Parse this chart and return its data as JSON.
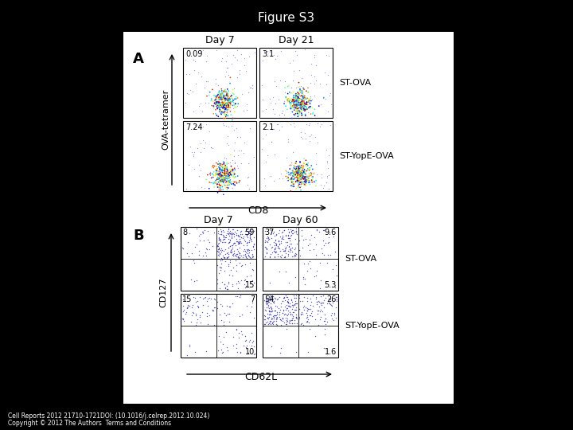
{
  "title": "Figure S3",
  "background_color": "#000000",
  "panel_bg": "#ffffff",
  "panel_A_label": "A",
  "panel_B_label": "B",
  "day7_label": "Day 7",
  "day21_label": "Day 21",
  "day60_label": "Day 60",
  "xaxis_A": "CD8",
  "yaxis_A": "OVA-tetramer",
  "xaxis_B": "CD62L",
  "yaxis_B": "CD127",
  "label_ST_OVA": "ST-OVA",
  "label_ST_YopE_OVA": "ST-YopE-OVA",
  "A_vals": {
    "top_left": "0.09",
    "top_right": "3.1",
    "bottom_left": "7.24",
    "bottom_right": "2.1"
  },
  "B_ST_OVA_day7": {
    "UL": "8",
    "UR": "59",
    "LL": "",
    "LR": "15"
  },
  "B_ST_OVA_day60": {
    "UL": "37",
    "UR": "9.6",
    "LL": "",
    "LR": "5.3"
  },
  "B_ST_YopE_day7": {
    "UL": "15",
    "UR": "7",
    "LL": "",
    "LR": "10"
  },
  "B_ST_YopE_day60": {
    "UL": "54",
    "UR": "26",
    "LL": "",
    "LR": "1.6"
  },
  "footer_line1": "Cell Reports 2012 21710-1721DOI: (10.1016/j.celrep.2012.10.024)",
  "footer_line2": "Copyright © 2012 The Authors  Terms and Conditions"
}
